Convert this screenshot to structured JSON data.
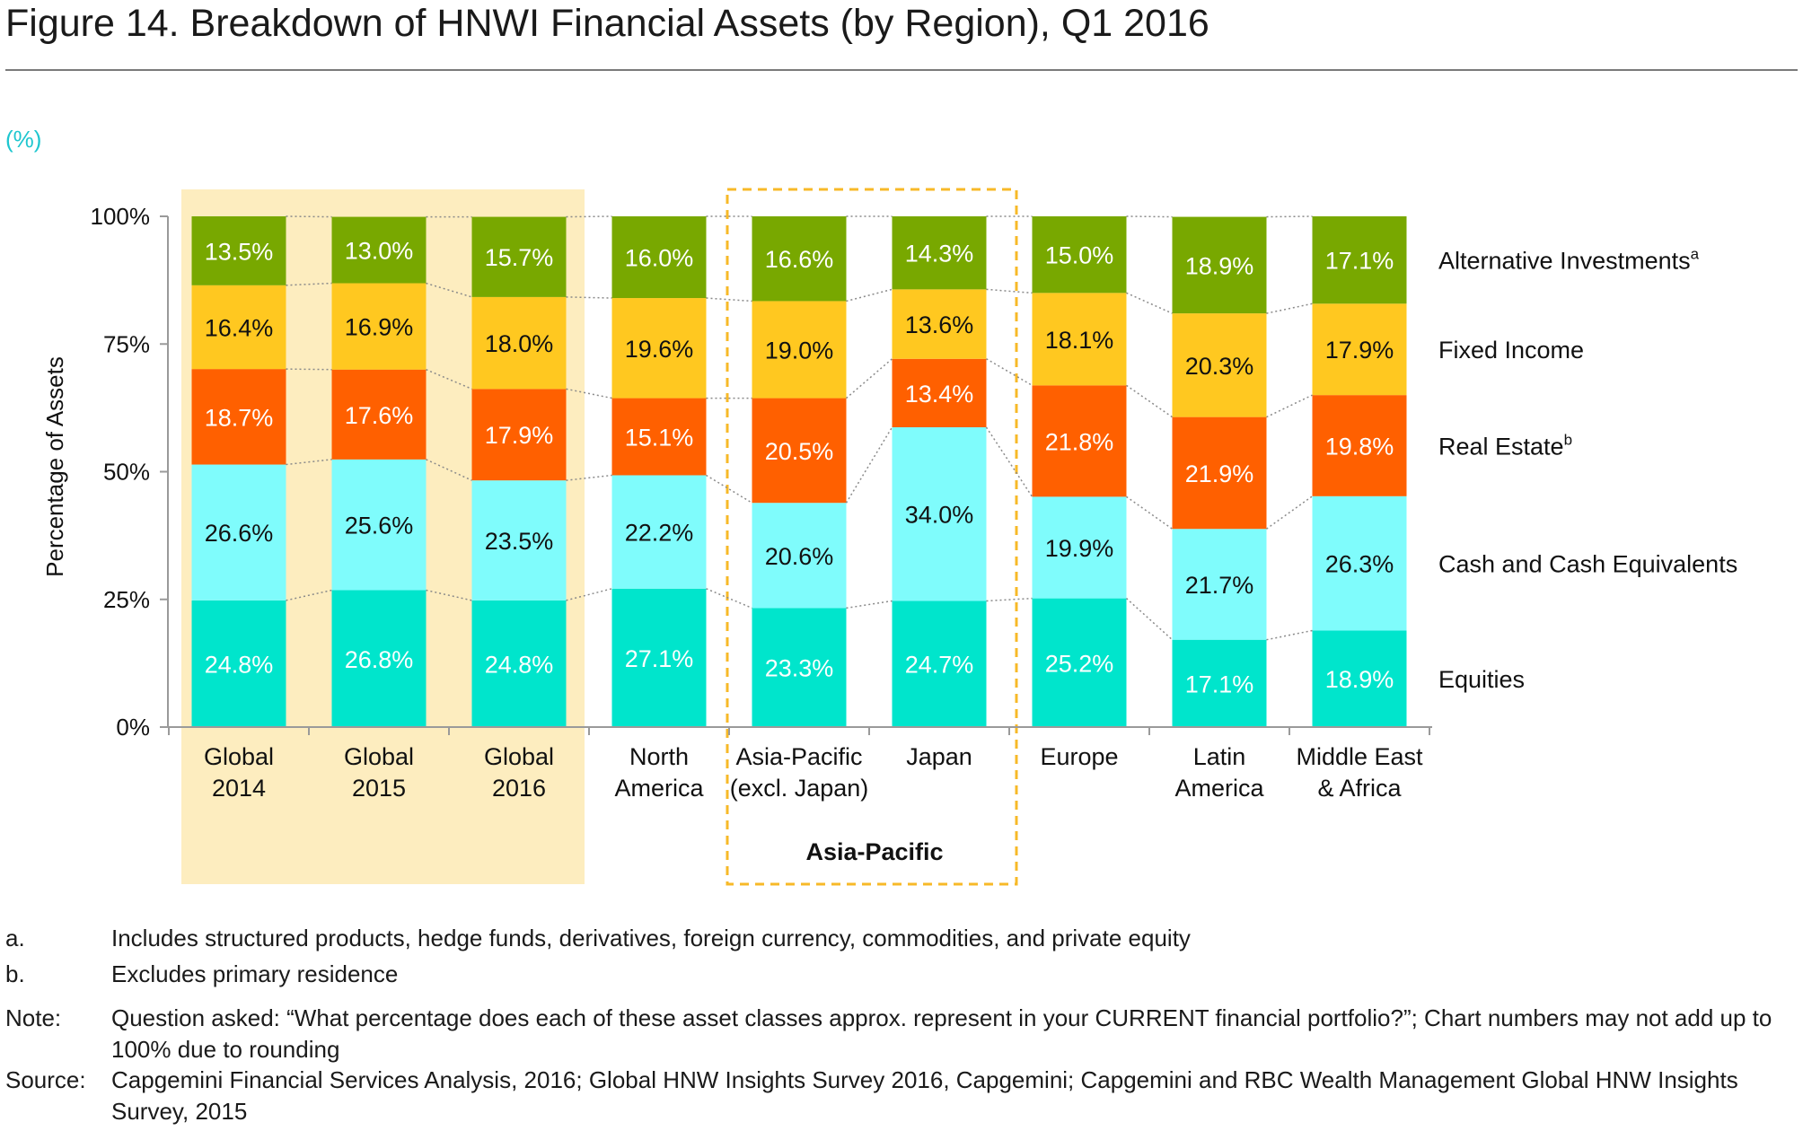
{
  "figure": {
    "title": "Figure 14. Breakdown of HNWI Financial Assets (by Region), Q1 2016",
    "unit_label": "(%)"
  },
  "chart_data": {
    "type": "bar",
    "stacked": true,
    "title": "Figure 14. Breakdown of HNWI Financial Assets (by Region), Q1 2016",
    "xlabel": "",
    "ylabel": "Percentage of Assets",
    "ylim": [
      0,
      100
    ],
    "y_ticks": [
      "0%",
      "25%",
      "50%",
      "75%",
      "100%"
    ],
    "y_tick_values": [
      0,
      25,
      50,
      75,
      100
    ],
    "categories": [
      [
        "Global",
        "2014"
      ],
      [
        "Global",
        "2015"
      ],
      [
        "Global",
        "2016"
      ],
      [
        "North",
        "America"
      ],
      [
        "Asia-Pacific",
        "(excl. Japan)"
      ],
      [
        "Japan"
      ],
      [
        "Europe"
      ],
      [
        "Latin",
        "America"
      ],
      [
        "Middle East",
        "& Africa"
      ]
    ],
    "series": [
      {
        "name": "Equities",
        "color": "#00e5cc",
        "label_color": "#ffffff",
        "values": [
          24.8,
          26.8,
          24.8,
          27.1,
          23.3,
          24.7,
          25.2,
          17.1,
          18.9
        ],
        "labels": [
          "24.8%",
          "26.8%",
          "24.8%",
          "27.1%",
          "23.3%",
          "24.7%",
          "25.2%",
          "17.1%",
          "18.9%"
        ]
      },
      {
        "name": "Cash and Cash Equivalents",
        "color": "#7ffcfc",
        "label_color": "#111111",
        "values": [
          26.6,
          25.6,
          23.5,
          22.2,
          20.6,
          34.0,
          19.9,
          21.7,
          26.3
        ],
        "labels": [
          "26.6%",
          "25.6%",
          "23.5%",
          "22.2%",
          "20.6%",
          "34.0%",
          "19.9%",
          "21.7%",
          "26.3%"
        ]
      },
      {
        "name": "Real Estate",
        "superscript": "b",
        "color": "#ff6000",
        "label_color": "#ffffff",
        "values": [
          18.7,
          17.6,
          17.9,
          15.1,
          20.5,
          13.4,
          21.8,
          21.9,
          19.8
        ],
        "labels": [
          "18.7%",
          "17.6%",
          "17.9%",
          "15.1%",
          "20.5%",
          "13.4%",
          "21.8%",
          "21.9%",
          "19.8%"
        ]
      },
      {
        "name": "Fixed Income",
        "color": "#ffc820",
        "label_color": "#111111",
        "values": [
          16.4,
          16.9,
          18.0,
          19.6,
          19.0,
          13.6,
          18.1,
          20.3,
          17.9
        ],
        "labels": [
          "16.4%",
          "16.9%",
          "18.0%",
          "19.6%",
          "19.0%",
          "13.6%",
          "18.1%",
          "20.3%",
          "17.9%"
        ]
      },
      {
        "name": "Alternative Investments",
        "superscript": "a",
        "color": "#78a800",
        "label_color": "#ffffff",
        "values": [
          13.5,
          13.0,
          15.7,
          16.0,
          16.6,
          14.3,
          15.0,
          18.9,
          17.1
        ],
        "labels": [
          "13.5%",
          "13.0%",
          "15.7%",
          "16.0%",
          "16.6%",
          "14.3%",
          "15.0%",
          "18.9%",
          "17.1%"
        ]
      }
    ],
    "groups": [
      {
        "label": "",
        "members": [
          0,
          1,
          2
        ],
        "style": "shaded",
        "color": "#fdedbf"
      },
      {
        "label": "Asia-Pacific",
        "members": [
          4,
          5
        ],
        "style": "dashed-box",
        "color": "#f7b928"
      }
    ],
    "legend_position": "right",
    "grid": false
  },
  "footnotes": [
    {
      "key": "a.",
      "text": "Includes structured products, hedge funds, derivatives, foreign currency, commodities, and private equity"
    },
    {
      "key": "b.",
      "text": "Excludes primary residence"
    },
    {
      "key": "Note:",
      "text": "Question asked: “What percentage does each of these asset classes approx. represent in your CURRENT financial portfolio?”; Chart numbers may not add up to 100% due to rounding"
    },
    {
      "key": "Source:",
      "text": "Capgemini Financial Services Analysis, 2016; Global HNW Insights Survey 2016, Capgemini; Capgemini and RBC Wealth Management Global HNW Insights Survey, 2015"
    }
  ]
}
